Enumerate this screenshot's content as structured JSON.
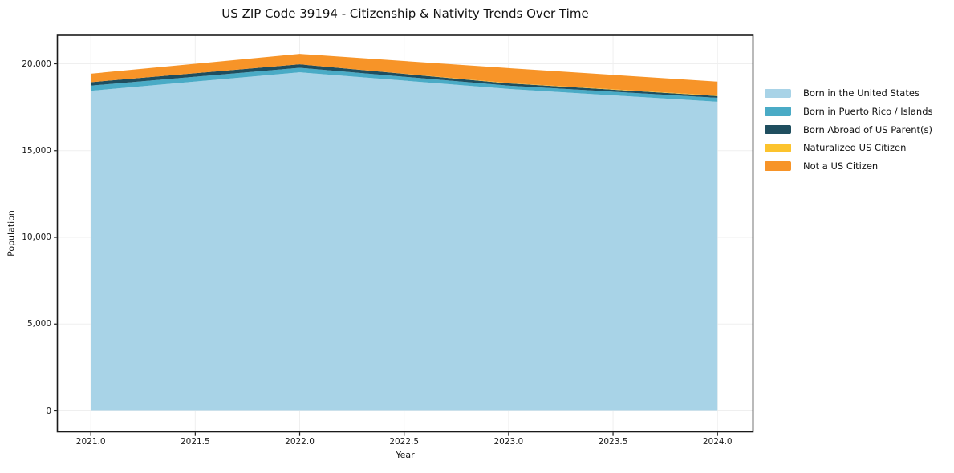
{
  "chart_data": {
    "type": "area",
    "stacked": true,
    "title": "US ZIP Code 39194 - Citizenship & Nativity Trends Over Time",
    "xlabel": "Year",
    "ylabel": "Population",
    "x": [
      2021,
      2022,
      2023,
      2024
    ],
    "xlim": [
      2020.84,
      2024.17
    ],
    "ylim": [
      -1200,
      21640
    ],
    "xticks": [
      2021.0,
      2021.5,
      2022.0,
      2022.5,
      2023.0,
      2023.5,
      2024.0
    ],
    "xtick_labels": [
      "2021.0",
      "2021.5",
      "2022.0",
      "2022.5",
      "2023.0",
      "2023.5",
      "2024.0"
    ],
    "yticks": [
      0,
      5000,
      10000,
      15000,
      20000
    ],
    "ytick_labels": [
      "0",
      "5,000",
      "10,000",
      "15,000",
      "20,000"
    ],
    "grid": true,
    "grid_color": "#efefef",
    "spine_color": "#1a1a1a",
    "legend_position": "center-left-outside-right",
    "series": [
      {
        "name": "Born in the United States",
        "color": "#a8d3e7",
        "values": [
          18440,
          19510,
          18550,
          17810
        ]
      },
      {
        "name": "Born in Puerto Rico / Islands",
        "color": "#4aabc6",
        "values": [
          300,
          260,
          190,
          230
        ]
      },
      {
        "name": "Born Abroad of US Parent(s)",
        "color": "#1f4e5f",
        "values": [
          200,
          200,
          130,
          100
        ]
      },
      {
        "name": "Naturalized US Citizen",
        "color": "#fcc32d",
        "values": [
          0,
          0,
          20,
          30
        ]
      },
      {
        "name": "Not a US Citizen",
        "color": "#f79428",
        "values": [
          490,
          600,
          860,
          800
        ]
      }
    ],
    "totals": [
      19430,
      20570,
      19750,
      18970
    ]
  }
}
